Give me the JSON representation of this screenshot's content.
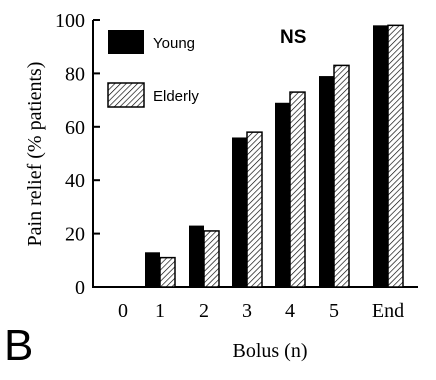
{
  "panel_label": "B",
  "chart_data": {
    "type": "bar",
    "xlabel": "Bolus (n)",
    "ylabel": "Pain relief (% patients)",
    "ylim": [
      0,
      100
    ],
    "yticks": [
      0,
      20,
      40,
      60,
      80,
      100
    ],
    "categories": [
      "0",
      "1",
      "2",
      "3",
      "4",
      "5",
      "End"
    ],
    "annotation": "NS",
    "series": [
      {
        "name": "Young",
        "values": [
          0,
          13,
          23,
          56,
          69,
          79,
          98
        ],
        "fill": "solid",
        "color": "#000000"
      },
      {
        "name": "Elderly",
        "values": [
          0,
          11,
          21,
          58,
          73,
          83,
          98
        ],
        "fill": "hatched",
        "color": "#000000"
      }
    ],
    "legend_position": "top-left",
    "grid": false
  }
}
